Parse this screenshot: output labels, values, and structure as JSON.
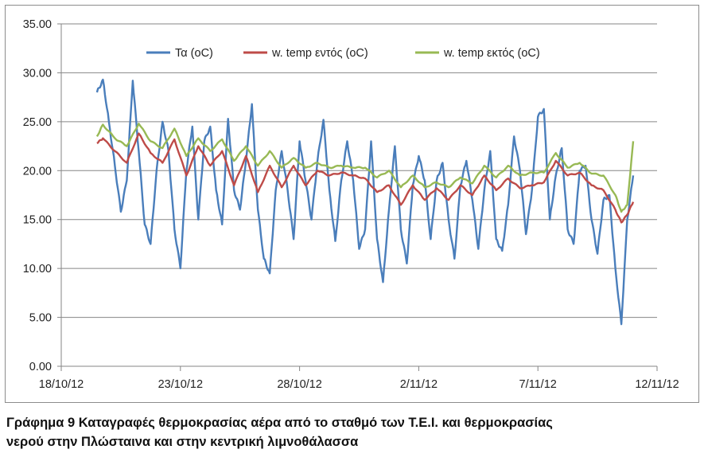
{
  "caption": {
    "line1": "Γράφημα 9 Καταγραφές θερμοκρασίας αέρα από το σταθμό των Τ.Ε.Ι. και θερμοκρασίας",
    "line2": "νερού στην Πλώσταινα και στην κεντρική λιμνοθάλασσα"
  },
  "chart_data": {
    "type": "line",
    "x_type": "date",
    "x_ticks": [
      "18/10/12",
      "23/10/12",
      "28/10/12",
      "2/11/12",
      "7/11/12",
      "12/11/12"
    ],
    "xlim": [
      "2012-10-18",
      "2012-11-12"
    ],
    "ylim": [
      0,
      35
    ],
    "y_ticks": [
      "0.00",
      "5.00",
      "10.00",
      "15.00",
      "20.00",
      "25.00",
      "30.00",
      "35.00"
    ],
    "grid": "horizontal",
    "legend_position": "top-center",
    "colors": {
      "air": "#4a7ebb",
      "inside": "#be4b48",
      "outside": "#98b954"
    },
    "series": [
      {
        "name": "Τα (oC)",
        "color": "#4a7ebb",
        "points": [
          [
            "2012-10-19 12:00",
            28.0
          ],
          [
            "2012-10-19 18:00",
            29.3
          ],
          [
            "2012-10-20 00:00",
            25.0
          ],
          [
            "2012-10-20 06:00",
            20.5
          ],
          [
            "2012-10-20 12:00",
            15.8
          ],
          [
            "2012-10-20 18:00",
            19.0
          ],
          [
            "2012-10-21 00:00",
            29.2
          ],
          [
            "2012-10-21 06:00",
            22.0
          ],
          [
            "2012-10-21 12:00",
            14.5
          ],
          [
            "2012-10-21 18:00",
            12.5
          ],
          [
            "2012-10-22 00:00",
            20.0
          ],
          [
            "2012-10-22 06:00",
            25.0
          ],
          [
            "2012-10-22 12:00",
            22.0
          ],
          [
            "2012-10-22 18:00",
            14.0
          ],
          [
            "2012-10-23 00:00",
            10.0
          ],
          [
            "2012-10-23 06:00",
            20.0
          ],
          [
            "2012-10-23 12:00",
            24.5
          ],
          [
            "2012-10-23 18:00",
            15.0
          ],
          [
            "2012-10-24 00:00",
            23.0
          ],
          [
            "2012-10-24 06:00",
            24.5
          ],
          [
            "2012-10-24 12:00",
            18.0
          ],
          [
            "2012-10-24 18:00",
            14.5
          ],
          [
            "2012-10-25 00:00",
            25.3
          ],
          [
            "2012-10-25 06:00",
            18.0
          ],
          [
            "2012-10-25 12:00",
            16.0
          ],
          [
            "2012-10-25 18:00",
            21.0
          ],
          [
            "2012-10-26 00:00",
            26.8
          ],
          [
            "2012-10-26 06:00",
            16.0
          ],
          [
            "2012-10-26 12:00",
            11.0
          ],
          [
            "2012-10-26 18:00",
            9.5
          ],
          [
            "2012-10-27 00:00",
            18.0
          ],
          [
            "2012-10-27 06:00",
            22.0
          ],
          [
            "2012-10-27 12:00",
            18.0
          ],
          [
            "2012-10-27 18:00",
            13.0
          ],
          [
            "2012-10-28 00:00",
            23.0
          ],
          [
            "2012-10-28 06:00",
            19.0
          ],
          [
            "2012-10-28 12:00",
            15.0
          ],
          [
            "2012-10-28 18:00",
            21.0
          ],
          [
            "2012-10-29 00:00",
            25.2
          ],
          [
            "2012-10-29 06:00",
            18.0
          ],
          [
            "2012-10-29 12:00",
            12.8
          ],
          [
            "2012-10-29 18:00",
            19.0
          ],
          [
            "2012-10-30 00:00",
            23.0
          ],
          [
            "2012-10-30 06:00",
            19.0
          ],
          [
            "2012-10-30 12:00",
            12.0
          ],
          [
            "2012-10-30 18:00",
            14.0
          ],
          [
            "2012-10-31 00:00",
            23.0
          ],
          [
            "2012-10-31 06:00",
            13.0
          ],
          [
            "2012-10-31 12:00",
            8.6
          ],
          [
            "2012-10-31 18:00",
            16.0
          ],
          [
            "2012-11-01 00:00",
            22.5
          ],
          [
            "2012-11-01 06:00",
            14.0
          ],
          [
            "2012-11-01 12:00",
            10.5
          ],
          [
            "2012-11-01 18:00",
            18.5
          ],
          [
            "2012-11-02 00:00",
            21.5
          ],
          [
            "2012-11-02 06:00",
            19.0
          ],
          [
            "2012-11-02 12:00",
            13.0
          ],
          [
            "2012-11-02 18:00",
            19.0
          ],
          [
            "2012-11-03 00:00",
            20.8
          ],
          [
            "2012-11-03 06:00",
            15.0
          ],
          [
            "2012-11-03 12:00",
            11.0
          ],
          [
            "2012-11-03 18:00",
            18.5
          ],
          [
            "2012-11-04 00:00",
            21.0
          ],
          [
            "2012-11-04 06:00",
            17.0
          ],
          [
            "2012-11-04 12:00",
            12.0
          ],
          [
            "2012-11-04 18:00",
            18.0
          ],
          [
            "2012-11-05 00:00",
            22.0
          ],
          [
            "2012-11-05 06:00",
            13.0
          ],
          [
            "2012-11-05 12:00",
            11.8
          ],
          [
            "2012-11-05 18:00",
            16.5
          ],
          [
            "2012-11-06 00:00",
            23.5
          ],
          [
            "2012-11-06 06:00",
            20.0
          ],
          [
            "2012-11-06 12:00",
            13.5
          ],
          [
            "2012-11-06 18:00",
            18.0
          ],
          [
            "2012-11-07 00:00",
            25.5
          ],
          [
            "2012-11-07 06:00",
            26.3
          ],
          [
            "2012-11-07 12:00",
            15.0
          ],
          [
            "2012-11-07 18:00",
            19.5
          ],
          [
            "2012-11-08 00:00",
            22.3
          ],
          [
            "2012-11-08 06:00",
            14.0
          ],
          [
            "2012-11-08 12:00",
            12.5
          ],
          [
            "2012-11-08 18:00",
            20.0
          ],
          [
            "2012-11-09 00:00",
            20.5
          ],
          [
            "2012-11-09 06:00",
            15.0
          ],
          [
            "2012-11-09 12:00",
            11.5
          ],
          [
            "2012-11-09 18:00",
            17.0
          ],
          [
            "2012-11-10 00:00",
            17.5
          ],
          [
            "2012-11-10 06:00",
            10.0
          ],
          [
            "2012-11-10 12:00",
            4.3
          ],
          [
            "2012-11-10 18:00",
            15.0
          ],
          [
            "2012-11-11 00:00",
            19.5
          ]
        ]
      },
      {
        "name": "w. temp εντός (oC)",
        "color": "#be4b48",
        "points": [
          [
            "2012-10-19 12:00",
            22.8
          ],
          [
            "2012-10-19 18:00",
            23.3
          ],
          [
            "2012-10-20 06:00",
            22.0
          ],
          [
            "2012-10-20 18:00",
            20.8
          ],
          [
            "2012-10-21 06:00",
            23.8
          ],
          [
            "2012-10-21 18:00",
            21.8
          ],
          [
            "2012-10-22 06:00",
            20.8
          ],
          [
            "2012-10-22 18:00",
            23.2
          ],
          [
            "2012-10-23 06:00",
            19.5
          ],
          [
            "2012-10-23 18:00",
            22.5
          ],
          [
            "2012-10-24 06:00",
            20.5
          ],
          [
            "2012-10-24 18:00",
            22.0
          ],
          [
            "2012-10-25 06:00",
            18.5
          ],
          [
            "2012-10-25 18:00",
            21.5
          ],
          [
            "2012-10-26 06:00",
            17.8
          ],
          [
            "2012-10-26 18:00",
            20.5
          ],
          [
            "2012-10-27 06:00",
            18.3
          ],
          [
            "2012-10-27 18:00",
            20.5
          ],
          [
            "2012-10-28 06:00",
            18.5
          ],
          [
            "2012-10-28 18:00",
            20.0
          ],
          [
            "2012-10-29 06:00",
            19.5
          ],
          [
            "2012-10-29 18:00",
            19.8
          ],
          [
            "2012-10-30 06:00",
            19.5
          ],
          [
            "2012-10-30 18:00",
            19.2
          ],
          [
            "2012-10-31 06:00",
            17.8
          ],
          [
            "2012-10-31 18:00",
            18.5
          ],
          [
            "2012-11-01 06:00",
            16.5
          ],
          [
            "2012-11-01 18:00",
            18.5
          ],
          [
            "2012-11-02 06:00",
            17.0
          ],
          [
            "2012-11-02 18:00",
            18.2
          ],
          [
            "2012-11-03 06:00",
            17.0
          ],
          [
            "2012-11-03 18:00",
            18.5
          ],
          [
            "2012-11-04 06:00",
            17.5
          ],
          [
            "2012-11-04 18:00",
            19.5
          ],
          [
            "2012-11-05 06:00",
            18.0
          ],
          [
            "2012-11-05 18:00",
            19.2
          ],
          [
            "2012-11-06 06:00",
            18.2
          ],
          [
            "2012-11-06 18:00",
            18.5
          ],
          [
            "2012-11-07 06:00",
            18.8
          ],
          [
            "2012-11-07 18:00",
            21.0
          ],
          [
            "2012-11-08 06:00",
            19.5
          ],
          [
            "2012-11-08 18:00",
            19.8
          ],
          [
            "2012-11-09 06:00",
            18.5
          ],
          [
            "2012-11-09 18:00",
            18.0
          ],
          [
            "2012-11-10 06:00",
            16.0
          ],
          [
            "2012-11-10 12:00",
            14.7
          ],
          [
            "2012-11-10 18:00",
            15.5
          ],
          [
            "2012-11-11 00:00",
            16.8
          ]
        ]
      },
      {
        "name": "w. temp εκτός (oC)",
        "color": "#98b954",
        "points": [
          [
            "2012-10-19 12:00",
            23.5
          ],
          [
            "2012-10-19 18:00",
            24.7
          ],
          [
            "2012-10-20 06:00",
            23.3
          ],
          [
            "2012-10-20 18:00",
            22.5
          ],
          [
            "2012-10-21 06:00",
            24.8
          ],
          [
            "2012-10-21 18:00",
            23.0
          ],
          [
            "2012-10-22 06:00",
            22.3
          ],
          [
            "2012-10-22 18:00",
            24.3
          ],
          [
            "2012-10-23 06:00",
            21.5
          ],
          [
            "2012-10-23 18:00",
            23.3
          ],
          [
            "2012-10-24 06:00",
            22.0
          ],
          [
            "2012-10-24 18:00",
            23.2
          ],
          [
            "2012-10-25 06:00",
            21.0
          ],
          [
            "2012-10-25 18:00",
            22.5
          ],
          [
            "2012-10-26 06:00",
            20.5
          ],
          [
            "2012-10-26 18:00",
            22.0
          ],
          [
            "2012-10-27 06:00",
            20.3
          ],
          [
            "2012-10-27 18:00",
            21.3
          ],
          [
            "2012-10-28 06:00",
            20.3
          ],
          [
            "2012-10-28 18:00",
            20.8
          ],
          [
            "2012-10-29 06:00",
            20.3
          ],
          [
            "2012-10-29 18:00",
            20.5
          ],
          [
            "2012-10-30 06:00",
            20.3
          ],
          [
            "2012-10-30 18:00",
            20.3
          ],
          [
            "2012-10-31 06:00",
            19.3
          ],
          [
            "2012-10-31 18:00",
            20.0
          ],
          [
            "2012-11-01 06:00",
            18.3
          ],
          [
            "2012-11-01 18:00",
            19.5
          ],
          [
            "2012-11-02 06:00",
            18.3
          ],
          [
            "2012-11-02 18:00",
            18.8
          ],
          [
            "2012-11-03 06:00",
            18.3
          ],
          [
            "2012-11-03 18:00",
            19.3
          ],
          [
            "2012-11-04 06:00",
            18.7
          ],
          [
            "2012-11-04 18:00",
            20.5
          ],
          [
            "2012-11-05 06:00",
            19.3
          ],
          [
            "2012-11-05 18:00",
            20.5
          ],
          [
            "2012-11-06 06:00",
            19.5
          ],
          [
            "2012-11-06 18:00",
            19.8
          ],
          [
            "2012-11-07 06:00",
            19.8
          ],
          [
            "2012-11-07 18:00",
            21.8
          ],
          [
            "2012-11-08 06:00",
            20.3
          ],
          [
            "2012-11-08 18:00",
            20.8
          ],
          [
            "2012-11-09 06:00",
            19.7
          ],
          [
            "2012-11-09 18:00",
            19.5
          ],
          [
            "2012-11-10 06:00",
            17.5
          ],
          [
            "2012-11-10 12:00",
            15.8
          ],
          [
            "2012-11-10 18:00",
            16.5
          ],
          [
            "2012-11-11 00:00",
            23.0
          ]
        ]
      }
    ]
  }
}
